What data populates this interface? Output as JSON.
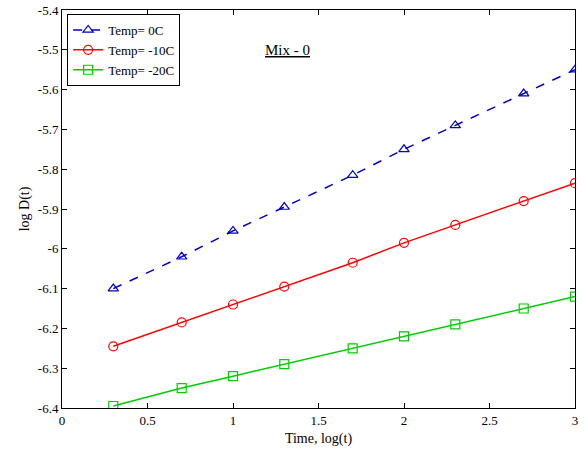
{
  "chart_data": {
    "type": "line",
    "x_label": "Time, log(t)",
    "y_label": "log D(t)",
    "annotation": "Mix - 0",
    "x": [
      0.3,
      0.7,
      1.0,
      1.3,
      1.7,
      2.0,
      2.3,
      2.7,
      3.0
    ],
    "series": [
      {
        "name": "Temp= 0C",
        "color": "#0000cc",
        "marker": "triangle",
        "line_style": "dash",
        "values": [
          -6.1,
          -6.02,
          -5.955,
          -5.895,
          -5.815,
          -5.75,
          -5.69,
          -5.61,
          -5.55
        ]
      },
      {
        "name": "Temp= -10C",
        "color": "#ff0000",
        "marker": "circle",
        "line_style": "solid",
        "values": [
          -6.245,
          -6.185,
          -6.14,
          -6.095,
          -6.035,
          -5.985,
          -5.94,
          -5.88,
          -5.835
        ]
      },
      {
        "name": "Temp= -20C",
        "color": "#00cc00",
        "marker": "square",
        "line_style": "solid",
        "values": [
          -6.395,
          -6.35,
          -6.32,
          -6.29,
          -6.25,
          -6.22,
          -6.19,
          -6.15,
          -6.12
        ]
      }
    ],
    "xlim": [
      0,
      3
    ],
    "xticks": [
      0,
      0.5,
      1,
      1.5,
      2,
      2.5,
      3
    ],
    "ylim": [
      -6.4,
      -5.4
    ],
    "yticks": [
      -6.4,
      -6.3,
      -6.2,
      -6.1,
      -6,
      -5.9,
      -5.8,
      -5.7,
      -5.6,
      -5.5,
      -5.4
    ],
    "grid": false,
    "legend": "upper left"
  }
}
